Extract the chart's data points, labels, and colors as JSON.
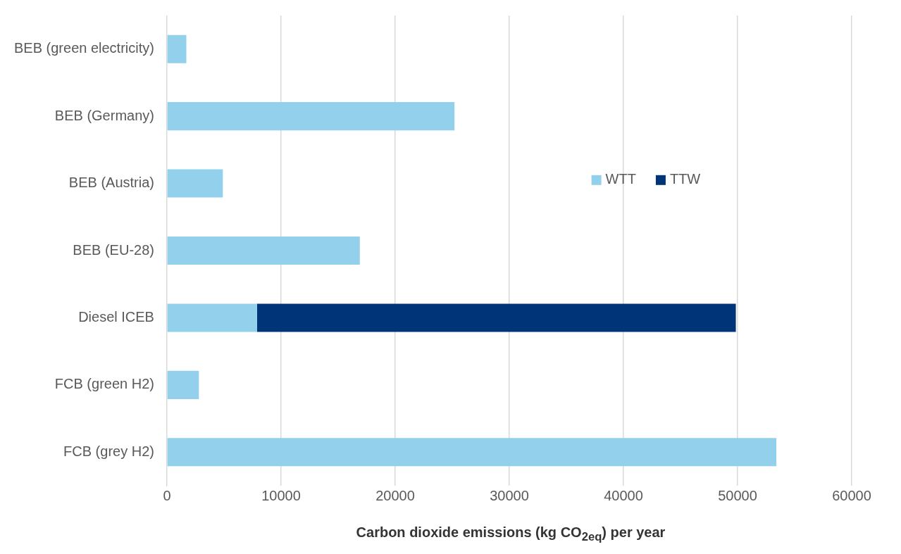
{
  "chart_data": {
    "type": "bar",
    "orientation": "horizontal",
    "stacked": true,
    "categories": [
      "BEB (green electricity)",
      "BEB (Germany)",
      "BEB (Austria)",
      "BEB (EU-28)",
      "Diesel ICEB",
      "FCB (green H2)",
      "FCB (grey H2)"
    ],
    "series": [
      {
        "name": "WTT",
        "color": "#92d0ec",
        "values": [
          1700,
          25200,
          4900,
          16900,
          7900,
          2800,
          53400
        ]
      },
      {
        "name": "TTW",
        "color": "#003478",
        "values": [
          null,
          null,
          null,
          null,
          41950,
          null,
          null
        ]
      }
    ],
    "xlim": [
      0,
      60000
    ],
    "xticks": [
      0,
      10000,
      20000,
      30000,
      40000,
      50000,
      60000
    ],
    "xlabel": "Carbon dioxide emissions (kg CO$_{2eq}$) per year",
    "grid": "x",
    "legend": "right"
  }
}
